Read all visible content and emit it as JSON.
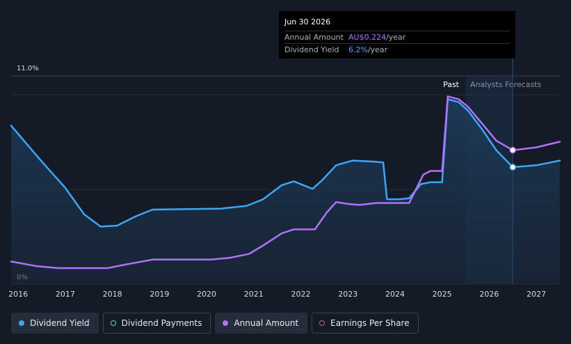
{
  "tooltip": {
    "date": "Jun 30 2026",
    "annual_amount_label": "Annual Amount",
    "annual_amount_value": "AU$0.224",
    "annual_amount_unit": "/year",
    "dividend_yield_label": "Dividend Yield",
    "dividend_yield_value": "6.2%",
    "dividend_yield_unit": "/year"
  },
  "legend": [
    {
      "label": "Dividend Yield",
      "color": "#3ba7ff",
      "style": "filled"
    },
    {
      "label": "Dividend Payments",
      "color": "#5fd3c6",
      "style": "hollow"
    },
    {
      "label": "Annual Amount",
      "color": "#b370ff",
      "style": "filled"
    },
    {
      "label": "Earnings Per Share",
      "color": "#e0557a",
      "style": "hollow"
    }
  ],
  "colors": {
    "yield": "#3ba7ff",
    "amount": "#b370ff",
    "background": "#151b26",
    "forecast_band": "#1c3048"
  },
  "chart_data": {
    "type": "line",
    "segments": {
      "past_label": "Past",
      "forecast_label": "Analysts Forecasts"
    },
    "y_tick_labels": [
      "11.0%",
      "0%"
    ],
    "x_tick_labels": [
      "2016",
      "2017",
      "2018",
      "2019",
      "2020",
      "2021",
      "2022",
      "2023",
      "2024",
      "2025",
      "2026",
      "2027"
    ],
    "xlim": [
      2015.85,
      2027.5
    ],
    "ylim": [
      0,
      11
    ],
    "forecast_start": 2025.5,
    "cursor_x": 2026.5,
    "series": [
      {
        "name": "Dividend Yield",
        "color": "#3ba7ff",
        "points": [
          [
            2015.85,
            8.4
          ],
          [
            2016.5,
            6.5
          ],
          [
            2017.0,
            5.1
          ],
          [
            2017.4,
            3.7
          ],
          [
            2017.75,
            3.05
          ],
          [
            2018.1,
            3.1
          ],
          [
            2018.5,
            3.6
          ],
          [
            2018.85,
            3.95
          ],
          [
            2019.5,
            3.97
          ],
          [
            2020.3,
            4.0
          ],
          [
            2020.85,
            4.15
          ],
          [
            2021.2,
            4.5
          ],
          [
            2021.6,
            5.25
          ],
          [
            2021.85,
            5.45
          ],
          [
            2022.05,
            5.25
          ],
          [
            2022.25,
            5.05
          ],
          [
            2022.45,
            5.5
          ],
          [
            2022.75,
            6.3
          ],
          [
            2023.1,
            6.55
          ],
          [
            2023.5,
            6.5
          ],
          [
            2023.75,
            6.45
          ],
          [
            2023.83,
            4.5
          ],
          [
            2024.1,
            4.5
          ],
          [
            2024.3,
            4.55
          ],
          [
            2024.55,
            5.3
          ],
          [
            2024.75,
            5.4
          ],
          [
            2025.0,
            5.4
          ],
          [
            2025.12,
            9.8
          ],
          [
            2025.35,
            9.65
          ],
          [
            2025.55,
            9.2
          ],
          [
            2025.85,
            8.2
          ],
          [
            2026.15,
            7.1
          ],
          [
            2026.5,
            6.2
          ],
          [
            2027.0,
            6.3
          ],
          [
            2027.5,
            6.55
          ]
        ]
      },
      {
        "name": "Annual Amount",
        "color": "#b370ff",
        "points": [
          [
            2015.85,
            1.2
          ],
          [
            2016.4,
            0.95
          ],
          [
            2016.85,
            0.85
          ],
          [
            2017.5,
            0.85
          ],
          [
            2017.9,
            0.85
          ],
          [
            2018.3,
            1.05
          ],
          [
            2018.85,
            1.3
          ],
          [
            2019.5,
            1.3
          ],
          [
            2020.1,
            1.3
          ],
          [
            2020.5,
            1.4
          ],
          [
            2020.9,
            1.6
          ],
          [
            2021.2,
            2.05
          ],
          [
            2021.6,
            2.7
          ],
          [
            2021.85,
            2.9
          ],
          [
            2022.2,
            2.9
          ],
          [
            2022.3,
            2.9
          ],
          [
            2022.55,
            3.8
          ],
          [
            2022.75,
            4.35
          ],
          [
            2023.0,
            4.25
          ],
          [
            2023.25,
            4.2
          ],
          [
            2023.6,
            4.3
          ],
          [
            2024.0,
            4.3
          ],
          [
            2024.3,
            4.3
          ],
          [
            2024.6,
            5.8
          ],
          [
            2024.75,
            6.0
          ],
          [
            2025.0,
            6.0
          ],
          [
            2025.12,
            9.95
          ],
          [
            2025.35,
            9.8
          ],
          [
            2025.55,
            9.4
          ],
          [
            2025.85,
            8.5
          ],
          [
            2026.15,
            7.6
          ],
          [
            2026.5,
            7.1
          ],
          [
            2027.0,
            7.25
          ],
          [
            2027.5,
            7.55
          ]
        ]
      }
    ]
  }
}
